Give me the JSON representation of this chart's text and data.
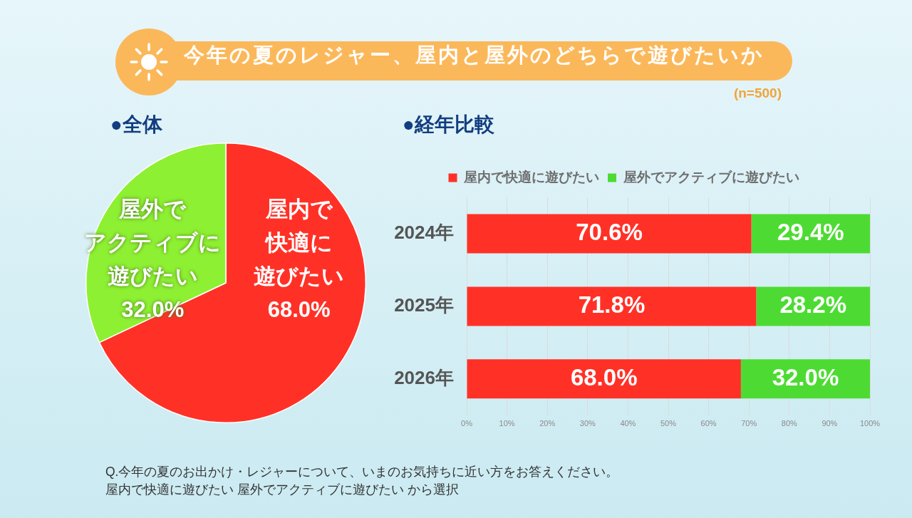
{
  "chart_data": [
    {
      "type": "other",
      "title": "今年の夏のレジャー、屋内と屋外のどちらで遊びたいか",
      "subtitle": "(n=500)",
      "annotations": [
        "Q.今年の夏のお出かけ・レジャーについて、いまのお気持ちに近い方をお答えください。",
        "屋内で快適に遊びたい 屋外でアクティブに遊びたい から選択"
      ]
    },
    {
      "type": "pie",
      "title": "●全体",
      "categories": [
        "屋内で快適に遊びたい",
        "屋外でアクティブに遊びたい"
      ],
      "values": [
        68.0,
        32.0
      ],
      "colors": [
        "#ff3127",
        "#8ef032"
      ],
      "value_labels": [
        "68.0%",
        "32.0%"
      ]
    },
    {
      "type": "bar",
      "title": "●経年比較",
      "orientation": "horizontal",
      "stacked": true,
      "categories": [
        "2024年",
        "2025年",
        "2026年"
      ],
      "series": [
        {
          "name": "屋内で快適に遊びたい",
          "color": "#ff3127",
          "values": [
            70.6,
            71.8,
            68.0
          ],
          "value_labels": [
            "70.6%",
            "71.8%",
            "68.0%"
          ]
        },
        {
          "name": "屋外でアクティブに遊びたい",
          "color": "#4ddb33",
          "values": [
            29.4,
            28.2,
            32.0
          ],
          "value_labels": [
            "29.4%",
            "28.2%",
            "32.0%"
          ]
        }
      ],
      "xlim": [
        0,
        100
      ],
      "xticks": [
        {
          "value": 0,
          "label": "0%"
        },
        {
          "value": 10,
          "label": "10%"
        },
        {
          "value": 20,
          "label": "20%"
        },
        {
          "value": 30,
          "label": "30%"
        },
        {
          "value": 40,
          "label": "40%"
        },
        {
          "value": 50,
          "label": "50%"
        },
        {
          "value": 60,
          "label": "60%"
        },
        {
          "value": 70,
          "label": "70%"
        },
        {
          "value": 80,
          "label": "80%"
        },
        {
          "value": 90,
          "label": "90%"
        },
        {
          "value": 100,
          "label": "100%"
        }
      ],
      "grid": "x",
      "legend": "top"
    }
  ]
}
